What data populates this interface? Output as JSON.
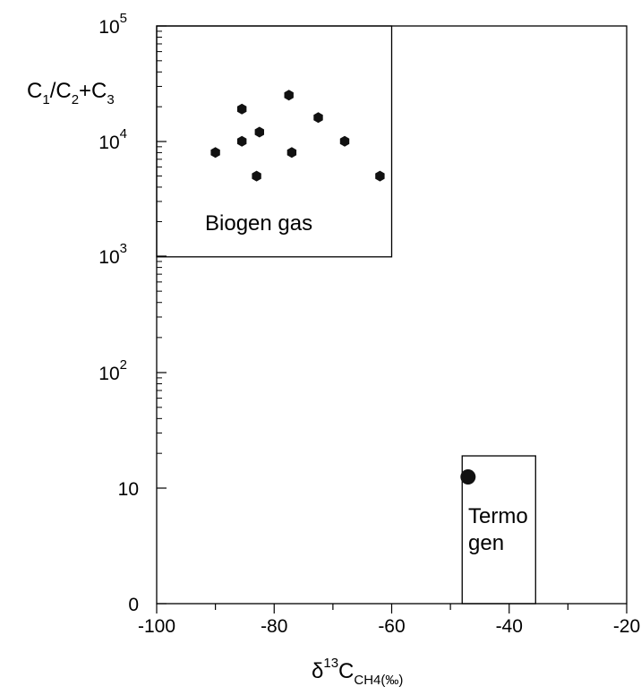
{
  "chart_data": {
    "type": "scatter",
    "x_axis": {
      "ticks": [
        -100,
        -80,
        -60,
        -40,
        -20
      ],
      "tick_labels": [
        "-100",
        "-80",
        "-60",
        "-40",
        "-20"
      ],
      "range": [
        -100,
        -20
      ],
      "title": {
        "delta": "δ",
        "sup": "13",
        "base": "C",
        "sub": "CH4",
        "unit": "(‰)"
      }
    },
    "y_axis": {
      "scale": "log",
      "range_label": [
        "0",
        "10^5"
      ],
      "tick_labels": [
        {
          "id": "t0",
          "base": "0",
          "exp": ""
        },
        {
          "id": "t1",
          "base": "10",
          "exp": ""
        },
        {
          "id": "t2",
          "base": "10",
          "exp": "2"
        },
        {
          "id": "t3",
          "base": "10",
          "exp": "3"
        },
        {
          "id": "t4",
          "base": "10",
          "exp": "4"
        },
        {
          "id": "t5",
          "base": "10",
          "exp": "5"
        }
      ],
      "title": {
        "c1": "C",
        "c1_sub": "1",
        "slash": "/C",
        "c2_sub": "2",
        "plus": "+C",
        "c3_sub": "3"
      }
    },
    "regions": [
      {
        "name": "Biogen gas",
        "lines": [
          "Biogen gas"
        ],
        "x_range": [
          -100,
          -60
        ],
        "y_range": [
          1000,
          100000
        ]
      },
      {
        "name": "Termogen",
        "lines": [
          "Termo",
          "gen"
        ],
        "x_range": [
          -48,
          -35.5
        ],
        "y_range": [
          0,
          19
        ]
      }
    ],
    "points_biogen": [
      {
        "x": -90,
        "y": 8000
      },
      {
        "x": -85.5,
        "y": 19000
      },
      {
        "x": -85.5,
        "y": 10000
      },
      {
        "x": -83,
        "y": 5000
      },
      {
        "x": -82.5,
        "y": 12000
      },
      {
        "x": -77.5,
        "y": 25000
      },
      {
        "x": -77,
        "y": 8000
      },
      {
        "x": -72.5,
        "y": 16000
      },
      {
        "x": -68,
        "y": 10000
      },
      {
        "x": -62,
        "y": 5000
      }
    ],
    "points_thermogenic": [
      {
        "x": -47,
        "y": 12.5
      }
    ],
    "grid": false,
    "legend": "none"
  }
}
